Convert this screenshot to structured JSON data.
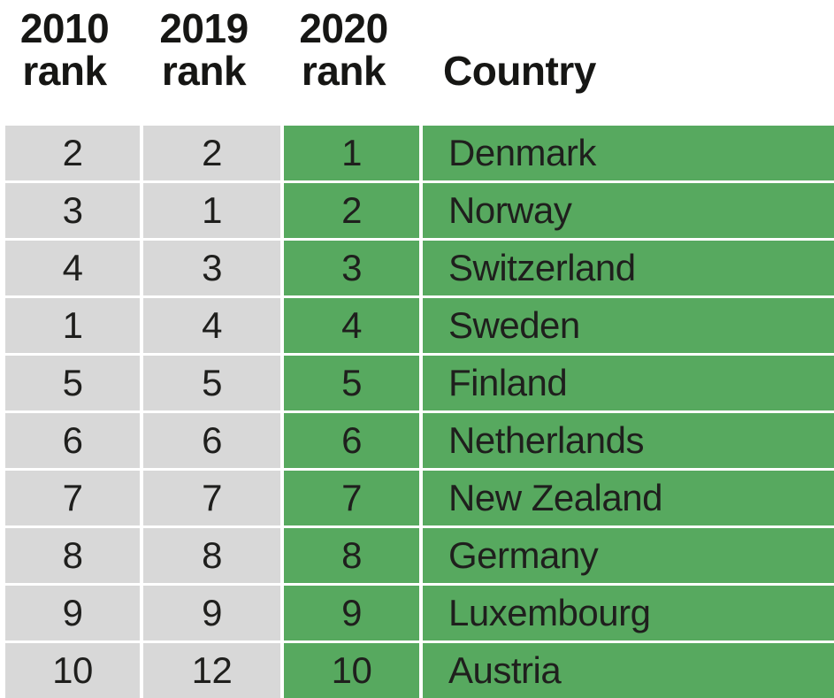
{
  "header": {
    "col_2010": {
      "year": "2010",
      "label": "rank"
    },
    "col_2019": {
      "year": "2019",
      "label": "rank"
    },
    "col_2020": {
      "year": "2020",
      "label": "rank"
    },
    "country_label": "Country"
  },
  "chart_data": {
    "type": "table",
    "title": "",
    "columns": [
      "2010 rank",
      "2019 rank",
      "2020 rank",
      "Country"
    ],
    "rows": [
      [
        "2",
        "2",
        "1",
        "Denmark"
      ],
      [
        "3",
        "1",
        "2",
        "Norway"
      ],
      [
        "4",
        "3",
        "3",
        "Switzerland"
      ],
      [
        "1",
        "4",
        "4",
        "Sweden"
      ],
      [
        "5",
        "5",
        "5",
        "Finland"
      ],
      [
        "6",
        "6",
        "6",
        "Netherlands"
      ],
      [
        "7",
        "7",
        "7",
        "New Zealand"
      ],
      [
        "8",
        "8",
        "8",
        "Germany"
      ],
      [
        "9",
        "9",
        "9",
        "Luxembourg"
      ],
      [
        "10",
        "12",
        "10",
        "Austria"
      ]
    ]
  },
  "colors": {
    "gray_cell": "#d8d8d8",
    "green_cell": "#57a95f",
    "text": "#1f1f1d",
    "header_text": "#161614",
    "background": "#ffffff"
  }
}
